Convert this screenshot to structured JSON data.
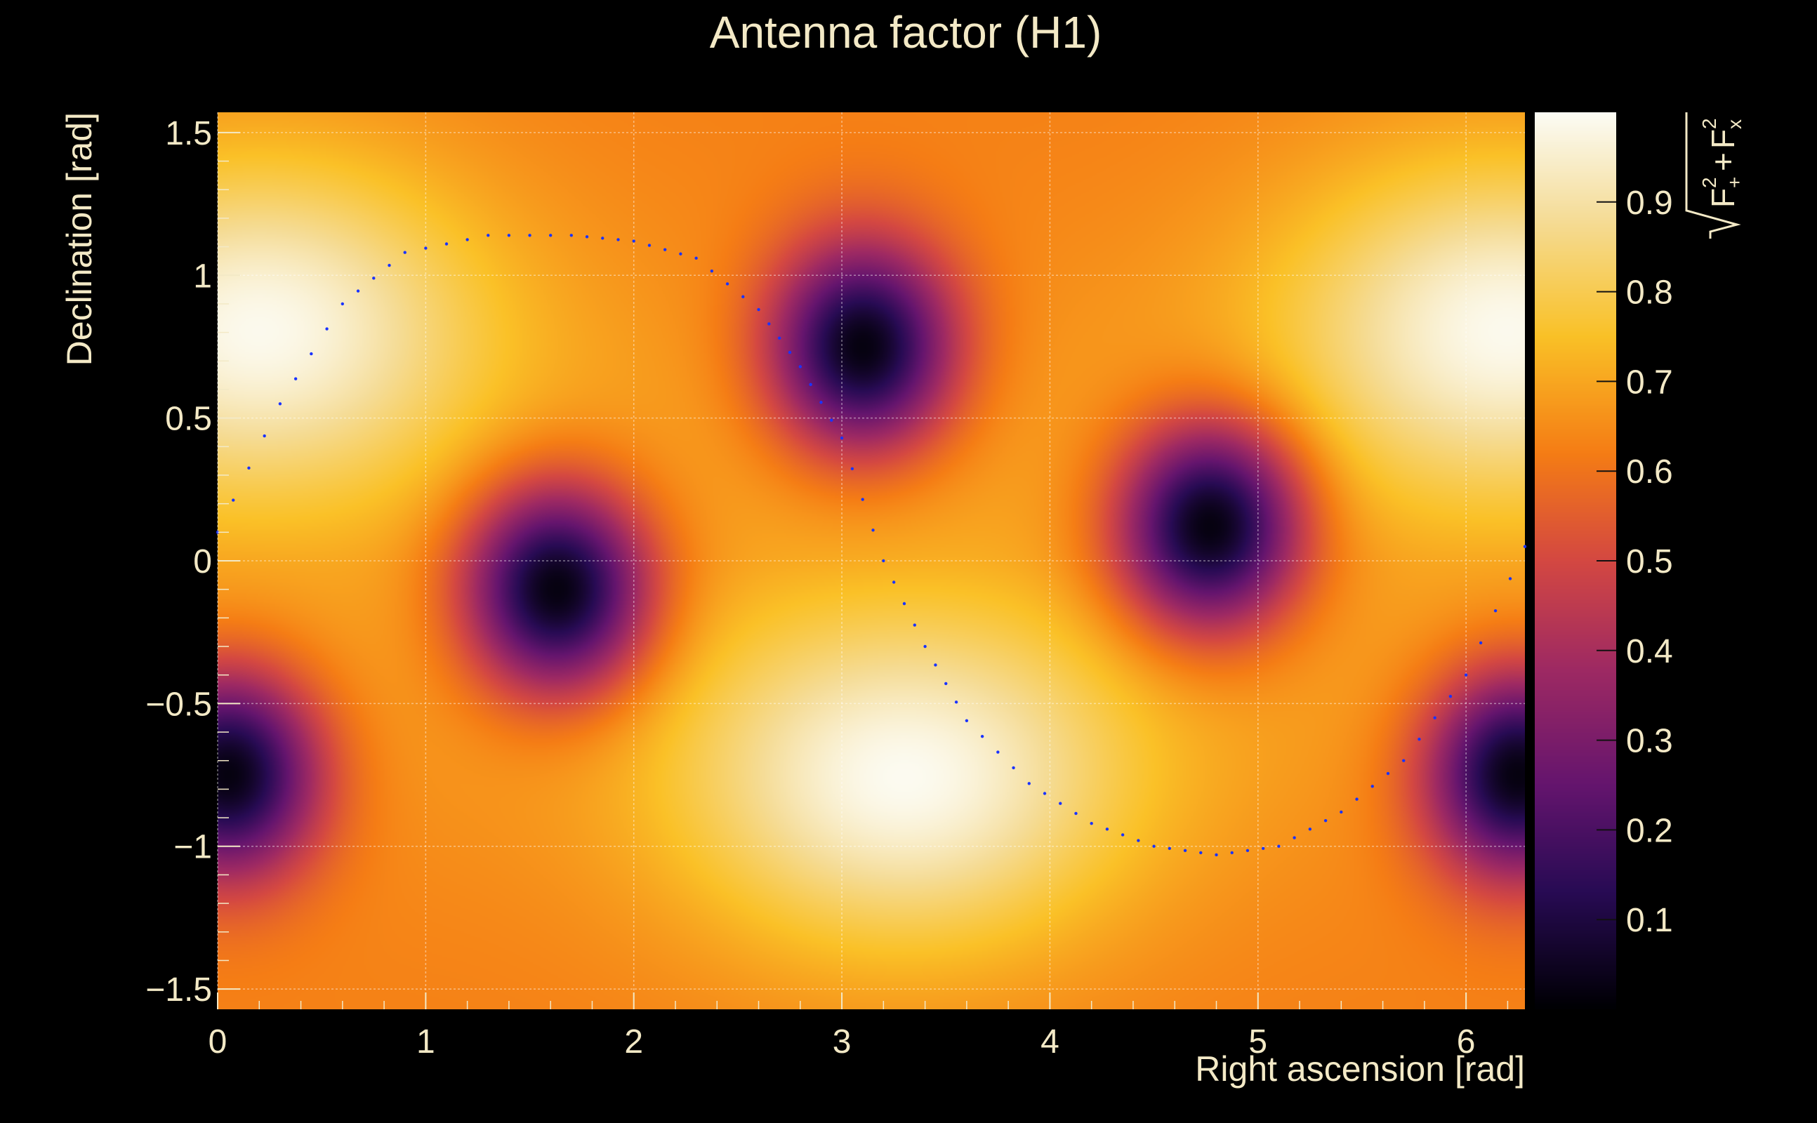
{
  "chart_data": {
    "type": "heatmap",
    "title": "Antenna factor (H1)",
    "xlabel": "Right ascension [rad]",
    "ylabel": "Declination [rad]",
    "zlabel": "√(F₊² + F×²)",
    "xlim": [
      0,
      6.283
    ],
    "ylim": [
      -1.571,
      1.571
    ],
    "zlim": [
      0,
      1
    ],
    "x_ticks": [
      0,
      1,
      2,
      3,
      4,
      5,
      6
    ],
    "y_ticks": [
      -1.5,
      -1,
      -0.5,
      0,
      0.5,
      1,
      1.5
    ],
    "z_ticks": [
      0.1,
      0.2,
      0.3,
      0.4,
      0.5,
      0.6,
      0.7,
      0.8,
      0.9
    ],
    "x_tick_labels": [
      "0",
      "1",
      "2",
      "3",
      "4",
      "5",
      "6"
    ],
    "y_tick_labels": [
      "−1.5",
      "−1",
      "−0.5",
      "0",
      "0.5",
      "1",
      "1.5"
    ],
    "z_tick_labels": [
      "0.1",
      "0.2",
      "0.3",
      "0.4",
      "0.5",
      "0.6",
      "0.7",
      "0.8",
      "0.9"
    ],
    "grid": true,
    "colormap": "inferno",
    "minima": [
      {
        "ra": 3.1,
        "dec": 0.75,
        "value": 0.02
      },
      {
        "ra": 1.63,
        "dec": -0.1,
        "value": 0.03
      },
      {
        "ra": 4.77,
        "dec": 0.12,
        "value": 0.03
      },
      {
        "ra": 0.05,
        "dec": -0.75,
        "value": 0.05
      },
      {
        "ra": 6.25,
        "dec": -0.75,
        "value": 0.05
      }
    ],
    "maxima": [
      {
        "ra": 0.2,
        "dec": 0.85,
        "value": 1.0
      },
      {
        "ra": 6.2,
        "dec": 0.85,
        "value": 1.0
      },
      {
        "ra": 3.3,
        "dec": -0.8,
        "value": 1.0
      }
    ],
    "overlay_series": {
      "name": "",
      "color": "#1a33ff",
      "style": "dotted",
      "points": [
        [
          0.0,
          0.1
        ],
        [
          0.3,
          0.55
        ],
        [
          0.6,
          0.9
        ],
        [
          0.9,
          1.08
        ],
        [
          1.3,
          1.14
        ],
        [
          1.7,
          1.14
        ],
        [
          2.0,
          1.12
        ],
        [
          2.3,
          1.06
        ],
        [
          2.6,
          0.88
        ],
        [
          2.8,
          0.68
        ],
        [
          3.0,
          0.43
        ],
        [
          3.2,
          0.0
        ],
        [
          3.4,
          -0.3
        ],
        [
          3.6,
          -0.56
        ],
        [
          3.9,
          -0.78
        ],
        [
          4.2,
          -0.92
        ],
        [
          4.5,
          -1.0
        ],
        [
          4.8,
          -1.03
        ],
        [
          5.1,
          -1.0
        ],
        [
          5.4,
          -0.88
        ],
        [
          5.7,
          -0.7
        ],
        [
          6.0,
          -0.4
        ],
        [
          6.283,
          0.05
        ]
      ]
    }
  }
}
